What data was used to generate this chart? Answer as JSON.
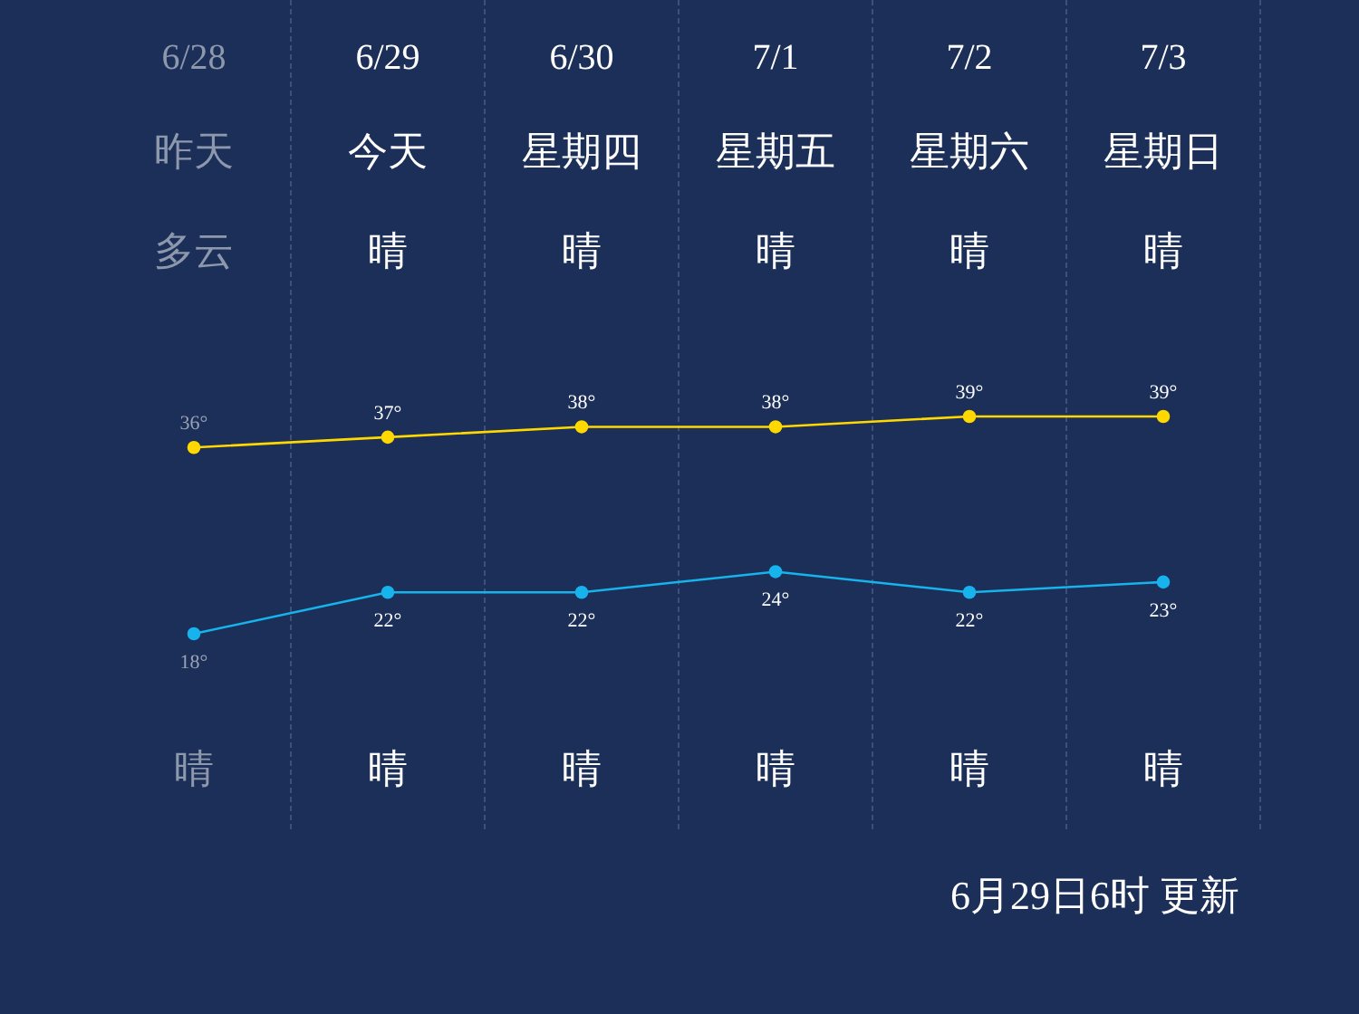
{
  "chart_data": {
    "type": "line",
    "categories": [
      "6/28",
      "6/29",
      "6/30",
      "7/1",
      "7/2",
      "7/3"
    ],
    "series": [
      {
        "name": null,
        "color": "#ffd800",
        "values": [
          36,
          37,
          38,
          38,
          39,
          39
        ],
        "value_labels": [
          "36°",
          "37°",
          "38°",
          "38°",
          "39°",
          "39°"
        ]
      },
      {
        "name": null,
        "color": "#17b3ec",
        "values": [
          18,
          22,
          22,
          24,
          22,
          23
        ],
        "value_labels": [
          "18°",
          "22°",
          "22°",
          "24°",
          "22°",
          "23°"
        ]
      }
    ],
    "marker": "circle",
    "grid": false,
    "legend": false,
    "annotations": [
      "昨天",
      "今天",
      "星期四",
      "星期五",
      "星期六",
      "星期日",
      "多云",
      "晴",
      "晴",
      "晴",
      "晴",
      "晴",
      "晴",
      "晴",
      "晴",
      "晴",
      "晴",
      "晴",
      "6月29日6时 更新"
    ]
  }
}
